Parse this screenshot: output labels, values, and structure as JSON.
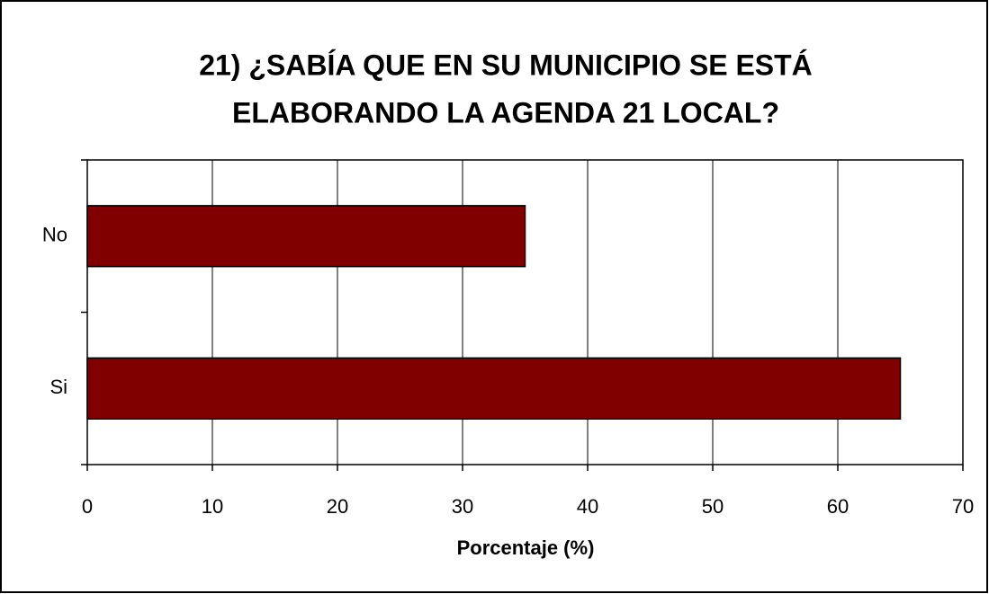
{
  "chart_data": {
    "type": "barh",
    "title": [
      "21) ¿SABÍA QUE EN SU MUNICIPIO SE ESTÁ",
      "ELABORANDO LA AGENDA 21 LOCAL?"
    ],
    "categories": [
      "No",
      "Si"
    ],
    "values": [
      35,
      65
    ],
    "color": "#800000",
    "xlabel": "Porcentaje (%)",
    "xlim": [
      0,
      70
    ],
    "xticks": [
      0,
      10,
      20,
      30,
      40,
      50,
      60,
      70
    ],
    "grid": true
  }
}
